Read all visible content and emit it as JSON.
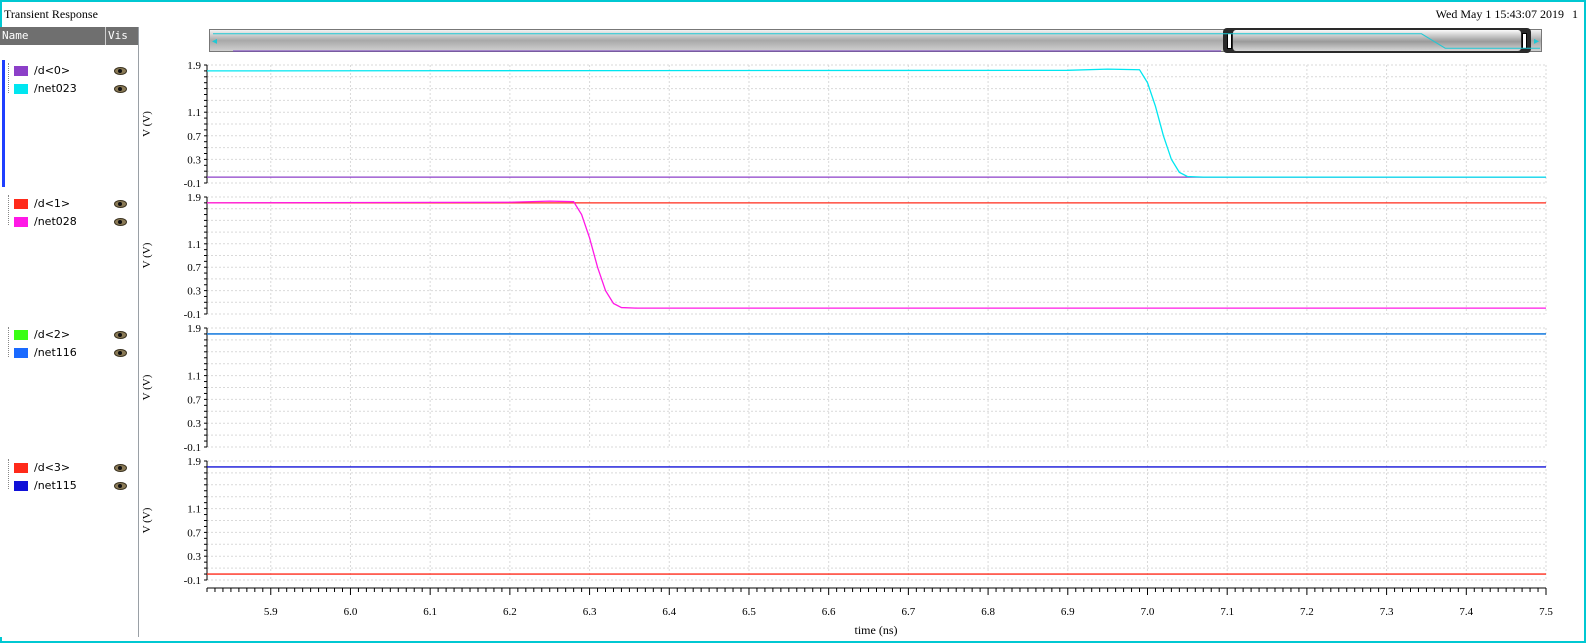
{
  "header": {
    "title": "Transient Response",
    "timestamp": "Wed May 1 15:43:07 2019",
    "page_number": "1"
  },
  "sidebar": {
    "col_name": "Name",
    "col_vis": "Vis",
    "groups": [
      {
        "items": [
          {
            "label": "/d<0>",
            "color": "#8c3fc8"
          },
          {
            "label": "/net023",
            "color": "#00e6f0"
          }
        ]
      },
      {
        "items": [
          {
            "label": "/d<1>",
            "color": "#ff2a1a"
          },
          {
            "label": "/net028",
            "color": "#ff18e6"
          }
        ]
      },
      {
        "items": [
          {
            "label": "/d<2>",
            "color": "#39ff14"
          },
          {
            "label": "/net116",
            "color": "#1a6aff"
          }
        ]
      },
      {
        "items": [
          {
            "label": "/d<3>",
            "color": "#ff2a1a"
          },
          {
            "label": "/net115",
            "color": "#1010d8"
          }
        ]
      }
    ]
  },
  "chart_data": {
    "type": "line",
    "xlabel": "time (ns)",
    "x_ticks": [
      "5.9",
      "6.0",
      "6.1",
      "6.2",
      "6.3",
      "6.4",
      "6.5",
      "6.6",
      "6.7",
      "6.8",
      "6.9",
      "7.0",
      "7.1",
      "7.2",
      "7.3",
      "7.4",
      "7.5"
    ],
    "xlim": [
      5.82,
      7.5
    ],
    "strips": [
      {
        "ylabel": "V (V)",
        "y_ticks": [
          "1.9",
          "1.1",
          "0.7",
          "0.3",
          "-0.1"
        ],
        "ylim": [
          -0.1,
          1.9
        ],
        "series": [
          {
            "name": "/d<0>",
            "color": "#8c3fc8",
            "x": [
              5.82,
              7.5
            ],
            "y": [
              0.0,
              0.0
            ]
          },
          {
            "name": "/net023",
            "color": "#00e6f0",
            "x": [
              5.82,
              6.9,
              6.95,
              6.99,
              7.0,
              7.01,
              7.02,
              7.03,
              7.04,
              7.05,
              7.07,
              7.5
            ],
            "y": [
              1.8,
              1.81,
              1.83,
              1.82,
              1.6,
              1.2,
              0.7,
              0.3,
              0.08,
              0.01,
              0.0,
              0.0
            ]
          }
        ]
      },
      {
        "ylabel": "V (V)",
        "y_ticks": [
          "1.9",
          "1.1",
          "0.7",
          "0.3",
          "-0.1"
        ],
        "ylim": [
          -0.1,
          1.9
        ],
        "series": [
          {
            "name": "/d<1>",
            "color": "#ff2a1a",
            "x": [
              5.82,
              7.5
            ],
            "y": [
              1.8,
              1.8
            ]
          },
          {
            "name": "/net028",
            "color": "#ff18e6",
            "x": [
              5.82,
              6.2,
              6.25,
              6.28,
              6.29,
              6.3,
              6.31,
              6.32,
              6.33,
              6.34,
              6.36,
              7.5
            ],
            "y": [
              1.8,
              1.81,
              1.83,
              1.82,
              1.6,
              1.2,
              0.7,
              0.3,
              0.08,
              0.01,
              0.0,
              0.0
            ]
          }
        ]
      },
      {
        "ylabel": "V (V)",
        "y_ticks": [
          "1.9",
          "1.1",
          "0.7",
          "0.3",
          "-0.1"
        ],
        "ylim": [
          -0.1,
          1.9
        ],
        "series": [
          {
            "name": "/d<2>",
            "color": "#39ff14",
            "x": [
              5.82,
              7.5
            ],
            "y": [
              1.8,
              1.8
            ]
          },
          {
            "name": "/net116",
            "color": "#1a6aff",
            "x": [
              5.82,
              7.5
            ],
            "y": [
              1.8,
              1.8
            ]
          }
        ]
      },
      {
        "ylabel": "V (V)",
        "y_ticks": [
          "1.9",
          "1.1",
          "0.7",
          "0.3",
          "-0.1"
        ],
        "ylim": [
          -0.1,
          1.9
        ],
        "series": [
          {
            "name": "/d<3>",
            "color": "#ff2a1a",
            "x": [
              5.82,
              7.5
            ],
            "y": [
              0.0,
              0.0
            ]
          },
          {
            "name": "/net115",
            "color": "#1010d8",
            "x": [
              5.82,
              7.5
            ],
            "y": [
              1.8,
              1.8
            ]
          }
        ]
      }
    ]
  }
}
